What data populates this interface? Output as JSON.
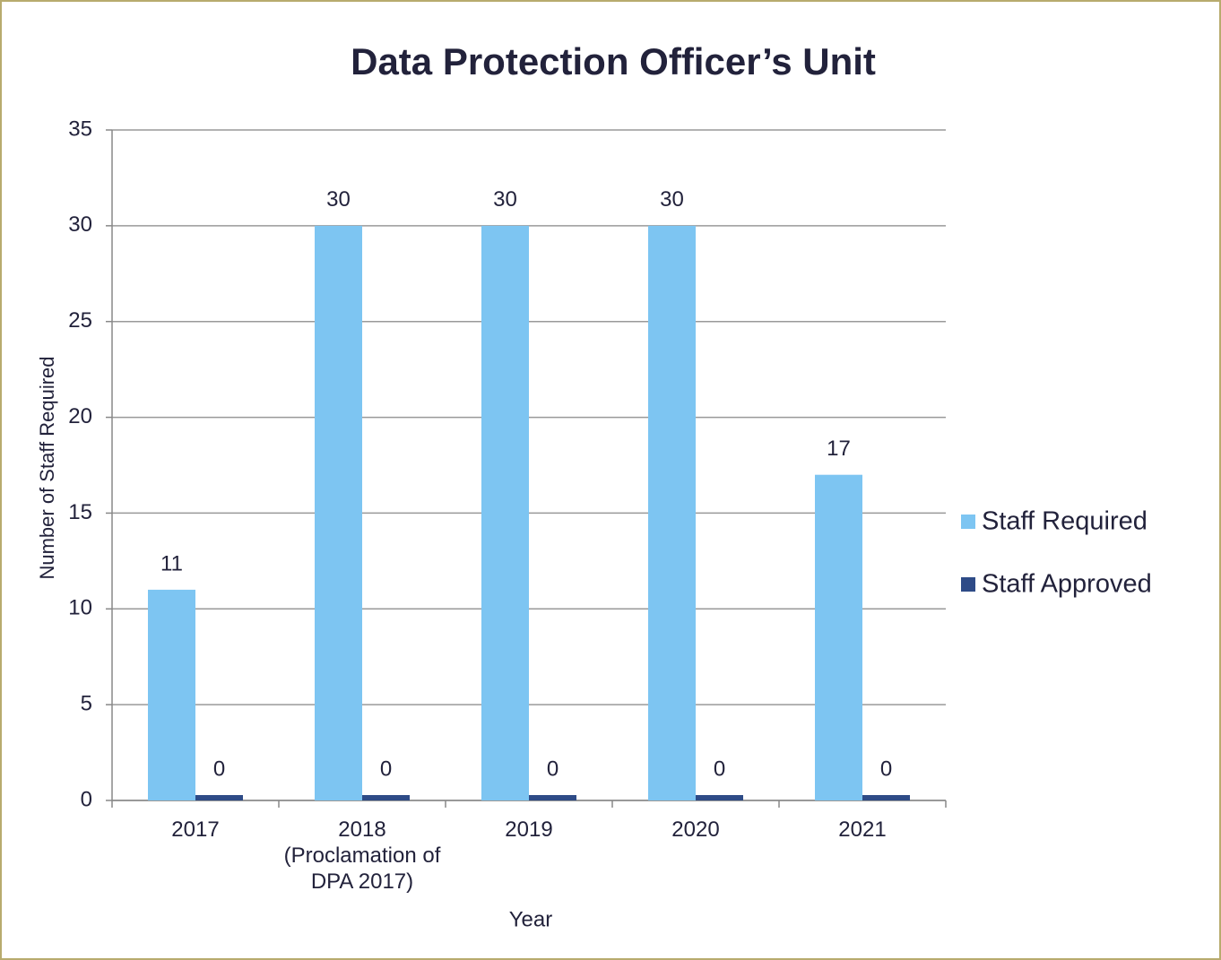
{
  "chart_data": {
    "type": "bar",
    "title": "Data Protection Officer’s Unit",
    "categories": [
      "2017",
      "2018 (Proclamation of DPA 2017)",
      "2019",
      "2020",
      "2021"
    ],
    "series": [
      {
        "name": "Staff Required",
        "color": "#7dc5f2",
        "values": [
          11,
          30,
          30,
          30,
          17
        ]
      },
      {
        "name": "Staff Approved",
        "color": "#2e4b87",
        "values": [
          0,
          0,
          0,
          0,
          0
        ]
      }
    ],
    "xlabel": "Year",
    "ylabel": "Number of Staff Required",
    "ylim": [
      0,
      35
    ],
    "yticks": [
      0,
      5,
      10,
      15,
      20,
      25,
      30,
      35
    ],
    "grid": true,
    "legend": "right"
  }
}
